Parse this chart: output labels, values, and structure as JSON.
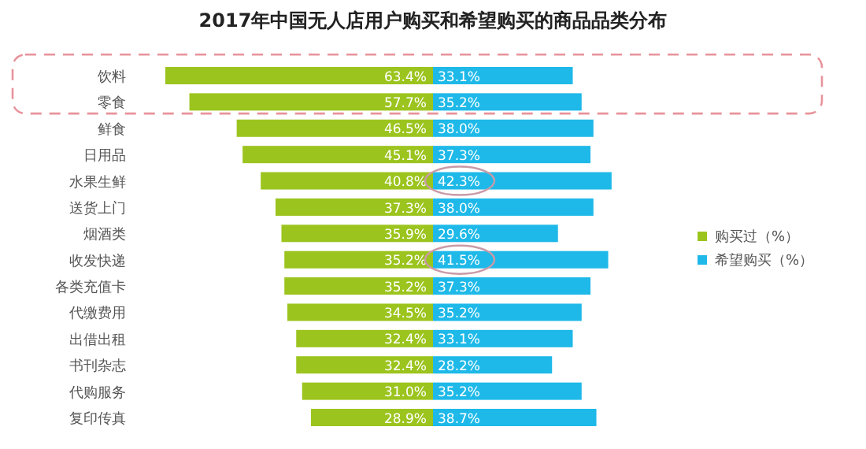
{
  "chart_data": [
    {
      "type": "bar",
      "orientation": "horizontal",
      "title": "2017年中国无人店用户购买和希望购买的商品品类分布",
      "categories": [
        "饮料",
        "零食",
        "鲜食",
        "日用品",
        "水果生鲜",
        "送货上门",
        "烟酒类",
        "收发快递",
        "各类充值卡",
        "代缴费用",
        "出借出租",
        "书刊杂志",
        "代购服务",
        "复印传真"
      ],
      "series": [
        {
          "name": "购买过（%）",
          "color": "#9cc41e",
          "values": [
            63.4,
            57.7,
            46.5,
            45.1,
            40.8,
            37.3,
            35.9,
            35.2,
            35.2,
            34.5,
            32.4,
            32.4,
            31.0,
            28.9
          ],
          "value_labels": [
            "63.4%",
            "57.7%",
            "46.5%",
            "45.1%",
            "40.8%",
            "37.3%",
            "35.9%",
            "35.2%",
            "35.2%",
            "34.5%",
            "32.4%",
            "32.4%",
            "31.0%",
            "28.9%"
          ]
        }
      ],
      "legend": "right"
    },
    {
      "type": "bar",
      "orientation": "horizontal",
      "categories": [
        null,
        null,
        null,
        null,
        null,
        null,
        null,
        null,
        null,
        null,
        null,
        null,
        null,
        null
      ],
      "series": [
        {
          "name": "希望购买（%）",
          "color": "#1eb9e8",
          "values": [
            33.1,
            35.2,
            38.0,
            37.3,
            42.3,
            38.0,
            29.6,
            41.5,
            37.3,
            35.2,
            33.1,
            28.2,
            35.2,
            38.7
          ],
          "value_labels": [
            "33.1%",
            "35.2%",
            "38.0%",
            "37.3%",
            "42.3%",
            "38.0%",
            "29.6%",
            "41.5%",
            "37.3%",
            "35.2%",
            "33.1%",
            "28.2%",
            "35.2%",
            "38.7%"
          ]
        }
      ],
      "legend": "right"
    }
  ]
}
